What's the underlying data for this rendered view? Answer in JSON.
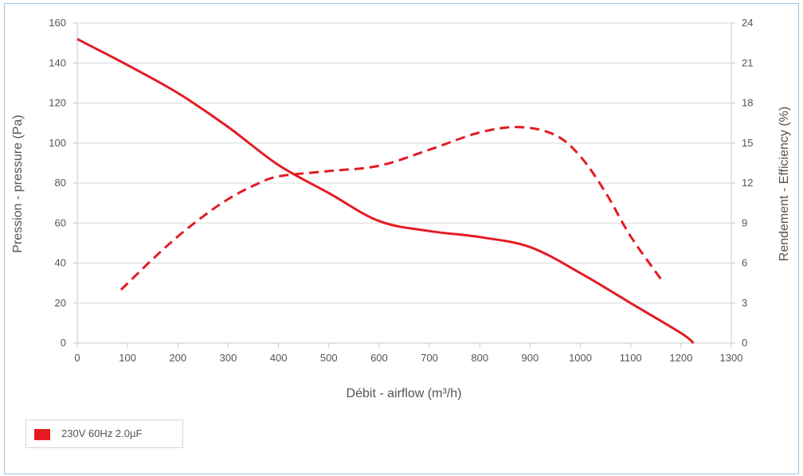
{
  "chart_data": {
    "type": "line",
    "title": "",
    "xlabel": "Débit - airflow (m³/h)",
    "ylabel": "Pression - pressure (Pa)",
    "y2label": "Rendement - Efficiency (%)",
    "xlim": [
      0,
      1300
    ],
    "ylim": [
      0,
      160
    ],
    "y2lim": [
      0,
      24
    ],
    "xticks": [
      "0",
      "100",
      "200",
      "300",
      "400",
      "500",
      "600",
      "700",
      "800",
      "900",
      "1000",
      "1100",
      "1200",
      "1300"
    ],
    "yticks": [
      "0",
      "20",
      "40",
      "60",
      "80",
      "100",
      "120",
      "140",
      "160"
    ],
    "y2ticks": [
      "0",
      "3",
      "6",
      "9",
      "12",
      "15",
      "18",
      "21",
      "24"
    ],
    "grid": true,
    "series": [
      {
        "name": "230V 60Hz 2.0µF",
        "axis": "left",
        "style": "solid",
        "x": [
          0,
          100,
          200,
          300,
          400,
          500,
          600,
          700,
          800,
          900,
          1000,
          1100,
          1200,
          1225
        ],
        "y": [
          152,
          139,
          125,
          108,
          89,
          75,
          61,
          56,
          53,
          48,
          35,
          20,
          5,
          0
        ]
      },
      {
        "name": "",
        "axis": "right",
        "style": "dashed",
        "x": [
          87,
          150,
          200,
          250,
          300,
          350,
          400,
          500,
          600,
          700,
          800,
          880,
          950,
          1000,
          1050,
          1100,
          1160
        ],
        "y": [
          4,
          6.3,
          8,
          9.5,
          10.8,
          11.8,
          12.5,
          12.9,
          13.3,
          14.5,
          15.8,
          16.2,
          15.6,
          14,
          11.3,
          8,
          4.8
        ]
      }
    ],
    "colors": {
      "series": "#e31b23",
      "grid": "#dcdcdc",
      "axis": "#c8c8c8",
      "text": "#555555"
    },
    "legend": {
      "placement": "bottom-left",
      "entries": [
        "230V 60Hz 2.0µF"
      ]
    }
  }
}
